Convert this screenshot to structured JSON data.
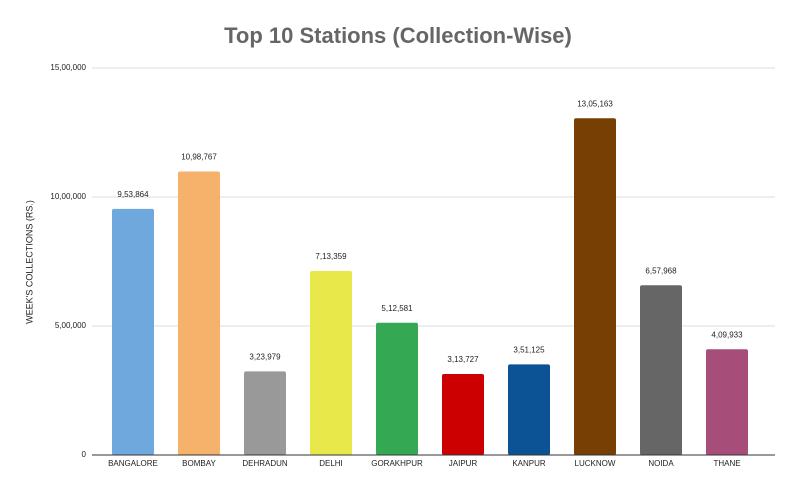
{
  "chart_data": {
    "type": "bar",
    "title": "Top 10 Stations (Collection-Wise)",
    "y_label": "WEEK'S COLLECTIONS (RS.)",
    "categories": [
      "BANGALORE",
      "BOMBAY",
      "DEHRADUN",
      "DELHI",
      "GORAKHPUR",
      "JAIPUR",
      "KANPUR",
      "LUCKNOW",
      "NOIDA",
      "THANE"
    ],
    "values": [
      953864,
      1098767,
      323979,
      713359,
      512581,
      313727,
      351125,
      1305163,
      657968,
      409933
    ],
    "value_labels": [
      "9,53,864",
      "10,98,767",
      "3,23,979",
      "7,13,359",
      "5,12,581",
      "3,13,727",
      "3,51,125",
      "13,05,163",
      "6,57,968",
      "4,09,933"
    ],
    "colors": [
      "#6fa8dc",
      "#f6b26b",
      "#999999",
      "#e8e84a",
      "#34a853",
      "#cc0000",
      "#0b5394",
      "#783f04",
      "#666666",
      "#a64d79"
    ],
    "ylim": [
      0,
      1500000
    ],
    "yticks": [
      0,
      {
        "value": 500000,
        "label": "5,00,000"
      },
      {
        "value": 1000000,
        "label": "10,00,000"
      },
      {
        "value": 1500000,
        "label": "15,00,000"
      }
    ],
    "grid": true
  }
}
